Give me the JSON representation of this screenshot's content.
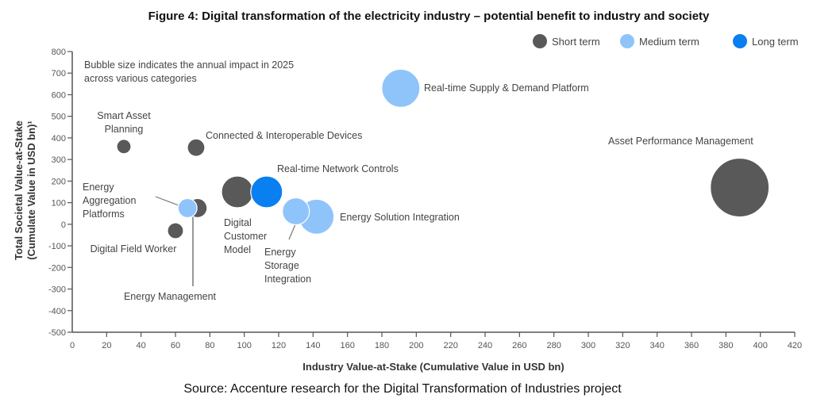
{
  "chart_data": {
    "type": "bubble",
    "title": "Figure 4: Digital transformation of the electricity industry – potential benefit to industry and society",
    "xlabel": "Industry Value-at-Stake (Cumulative Value in USD bn)",
    "ylabel_line1": "Total Societal Value-at-Stake",
    "ylabel_line2": "(Cumulate Value in USD bn)¹",
    "xlim": [
      0,
      420
    ],
    "ylim": [
      -500,
      800
    ],
    "xticks": [
      0,
      20,
      40,
      60,
      80,
      100,
      120,
      140,
      160,
      180,
      200,
      220,
      240,
      260,
      280,
      300,
      320,
      340,
      360,
      380,
      400,
      420
    ],
    "yticks": [
      800,
      700,
      600,
      500,
      400,
      300,
      200,
      100,
      0,
      -100,
      -200,
      -300,
      -400,
      -500
    ],
    "grid": false,
    "note_line1": "Bubble size indicates the annual  impact in 2025",
    "note_line2": "across various categories",
    "source": "Source: Accenture research for the Digital Transformation of Industries project",
    "legend_position": "top-right",
    "legend": [
      {
        "name": "Short term",
        "color": "#595959"
      },
      {
        "name": "Medium term",
        "color": "#8fc4fb"
      },
      {
        "name": "Long term",
        "color": "#0a7ff0"
      }
    ],
    "series": [
      {
        "name": "Asset Performance Management",
        "label_lines": [
          "Asset Performance Management"
        ],
        "term": "Short term",
        "x": 388,
        "y": 170,
        "size": 37
      },
      {
        "name": "Real-time Supply & Demand Platform",
        "label_lines": [
          "Real-time Supply & Demand Platform"
        ],
        "term": "Medium term",
        "x": 191,
        "y": 630,
        "size": 24
      },
      {
        "name": "Smart Asset Planning",
        "label_lines": [
          "Smart Asset",
          "Planning"
        ],
        "term": "Short term",
        "x": 30,
        "y": 360,
        "size": 9
      },
      {
        "name": "Connected & Interoperable Devices",
        "label_lines": [
          "Connected & Interoperable Devices"
        ],
        "term": "Short term",
        "x": 72,
        "y": 355,
        "size": 11
      },
      {
        "name": "Energy Management",
        "label_lines": [
          "Energy Management"
        ],
        "term": "Short term",
        "x": 71,
        "y": 75,
        "size": 12
      },
      {
        "name": "Energy Aggregation Platforms",
        "label_lines": [
          "Energy",
          "Aggregation",
          "Platforms"
        ],
        "term": "Medium term",
        "x": 67,
        "y": 75,
        "size": 12
      },
      {
        "name": "Digital Field Worker",
        "label_lines": [
          "Digital Field Worker"
        ],
        "term": "Short term",
        "x": 60,
        "y": -30,
        "size": 10
      },
      {
        "name": "Digital Customer Model",
        "label_lines": [
          "Digital",
          "Customer",
          "Model"
        ],
        "term": "Short term",
        "x": 96,
        "y": 150,
        "size": 20
      },
      {
        "name": "Real-time Network Controls",
        "label_lines": [
          "Real-time Network Controls"
        ],
        "term": "Long term",
        "x": 113,
        "y": 150,
        "size": 20
      },
      {
        "name": "Energy Solution Integration",
        "label_lines": [
          "Energy Solution Integration"
        ],
        "term": "Medium term",
        "x": 142,
        "y": 35,
        "size": 22
      },
      {
        "name": "Energy Storage Integration",
        "label_lines": [
          "Energy",
          "Storage",
          "Integration"
        ],
        "term": "Medium term",
        "x": 130,
        "y": 60,
        "size": 17
      }
    ]
  }
}
